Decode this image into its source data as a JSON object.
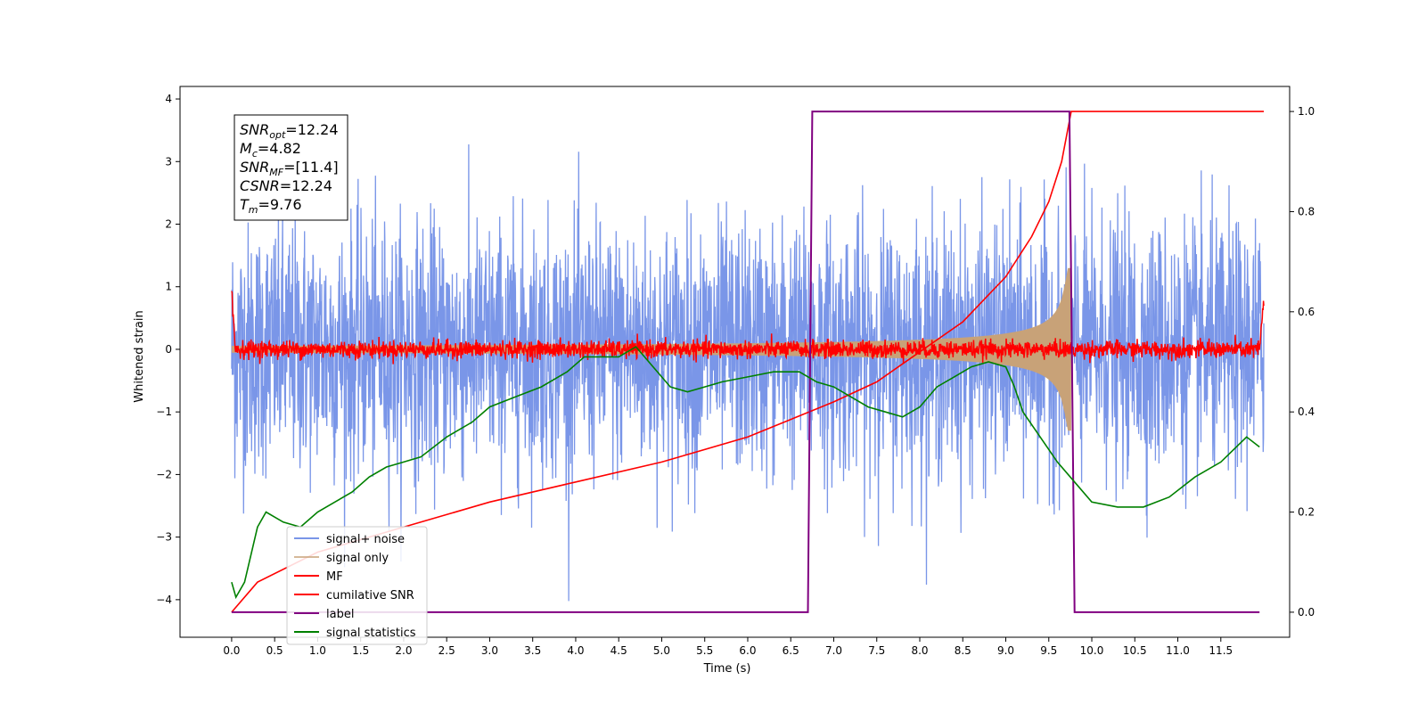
{
  "chart_data": {
    "type": "line",
    "xlabel": "Time (s)",
    "ylabel": "Whitened strain",
    "x_ticks": [
      "0.0",
      "0.5",
      "1.0",
      "1.5",
      "2.0",
      "2.5",
      "3.0",
      "3.5",
      "4.0",
      "4.5",
      "5.0",
      "5.5",
      "6.0",
      "6.5",
      "7.0",
      "7.5",
      "8.0",
      "8.5",
      "9.0",
      "9.5",
      "10.0",
      "10.5",
      "11.0",
      "11.5"
    ],
    "xlim": [
      -0.6,
      12.3
    ],
    "ylim_left": [
      -4.6,
      4.2
    ],
    "y_ticks_left": [
      "4",
      "3",
      "2",
      "1",
      "0",
      "−1",
      "−2",
      "−3",
      "−4"
    ],
    "ylim_right": [
      -0.05,
      1.05
    ],
    "y_ticks_right": [
      "1.0",
      "0.8",
      "0.6",
      "0.4",
      "0.2",
      "0.0"
    ],
    "grid": false,
    "legend_position": "lower-left",
    "annotation": {
      "lines": [
        {
          "main": "SNR",
          "sub": "opt",
          "value": "=12.24"
        },
        {
          "main": "M",
          "sub": "c",
          "value": "=4.82"
        },
        {
          "main": "SNR",
          "sub": "MF",
          "value": "=[11.4]"
        },
        {
          "main": "CSNR",
          "sub": "",
          "value": "=12.24"
        },
        {
          "main": "T",
          "sub": "m",
          "value": "=9.76"
        }
      ]
    },
    "series": [
      {
        "name": "signal+ noise",
        "color": "#7a96e8",
        "axis": "left",
        "kind": "noise",
        "x_range": [
          0.0,
          12.0
        ],
        "amplitude_std": 1.0
      },
      {
        "name": "signal only",
        "color": "#c8a278",
        "axis": "left",
        "kind": "chirp",
        "x_range": [
          0.0,
          9.76
        ],
        "peak_amplitude": 1.3
      },
      {
        "name": "MF",
        "color": "#ff0000",
        "axis": "left",
        "kind": "noise",
        "x_range": [
          0.0,
          12.0
        ],
        "amplitude_std": 0.07
      },
      {
        "name": "cumilative SNR",
        "color": "#ff0000",
        "axis": "right",
        "x": [
          0.0,
          0.3,
          1.0,
          2.0,
          3.0,
          4.0,
          5.0,
          6.0,
          7.0,
          7.5,
          8.0,
          8.5,
          9.0,
          9.3,
          9.5,
          9.65,
          9.76,
          12.0
        ],
        "y": [
          0.0,
          0.06,
          0.12,
          0.17,
          0.22,
          0.26,
          0.3,
          0.35,
          0.42,
          0.46,
          0.52,
          0.58,
          0.67,
          0.75,
          0.82,
          0.9,
          1.0,
          1.0
        ]
      },
      {
        "name": "label",
        "color": "#800080",
        "axis": "right",
        "x": [
          0.0,
          6.7,
          6.75,
          9.74,
          9.8,
          11.95
        ],
        "y": [
          0.0,
          0.0,
          1.0,
          1.0,
          0.0,
          0.0
        ]
      },
      {
        "name": "signal statistics",
        "color": "#008000",
        "axis": "right",
        "x": [
          0.0,
          0.05,
          0.15,
          0.3,
          0.4,
          0.5,
          0.6,
          0.8,
          1.0,
          1.2,
          1.4,
          1.6,
          1.8,
          2.0,
          2.2,
          2.5,
          2.8,
          3.0,
          3.3,
          3.6,
          3.9,
          4.1,
          4.3,
          4.5,
          4.7,
          4.9,
          5.1,
          5.3,
          5.5,
          5.7,
          6.0,
          6.3,
          6.6,
          6.8,
          7.0,
          7.2,
          7.4,
          7.6,
          7.8,
          8.0,
          8.2,
          8.4,
          8.6,
          8.8,
          9.0,
          9.1,
          9.2,
          9.4,
          9.6,
          9.8,
          10.0,
          10.3,
          10.6,
          10.9,
          11.2,
          11.5,
          11.8,
          11.95
        ],
        "y": [
          0.06,
          0.03,
          0.06,
          0.17,
          0.2,
          0.19,
          0.18,
          0.17,
          0.2,
          0.22,
          0.24,
          0.27,
          0.29,
          0.3,
          0.31,
          0.35,
          0.38,
          0.41,
          0.43,
          0.45,
          0.48,
          0.51,
          0.51,
          0.51,
          0.53,
          0.49,
          0.45,
          0.44,
          0.45,
          0.46,
          0.47,
          0.48,
          0.48,
          0.46,
          0.45,
          0.43,
          0.41,
          0.4,
          0.39,
          0.41,
          0.45,
          0.47,
          0.49,
          0.5,
          0.49,
          0.45,
          0.4,
          0.35,
          0.3,
          0.26,
          0.22,
          0.21,
          0.21,
          0.23,
          0.27,
          0.3,
          0.35,
          0.33
        ]
      }
    ]
  }
}
